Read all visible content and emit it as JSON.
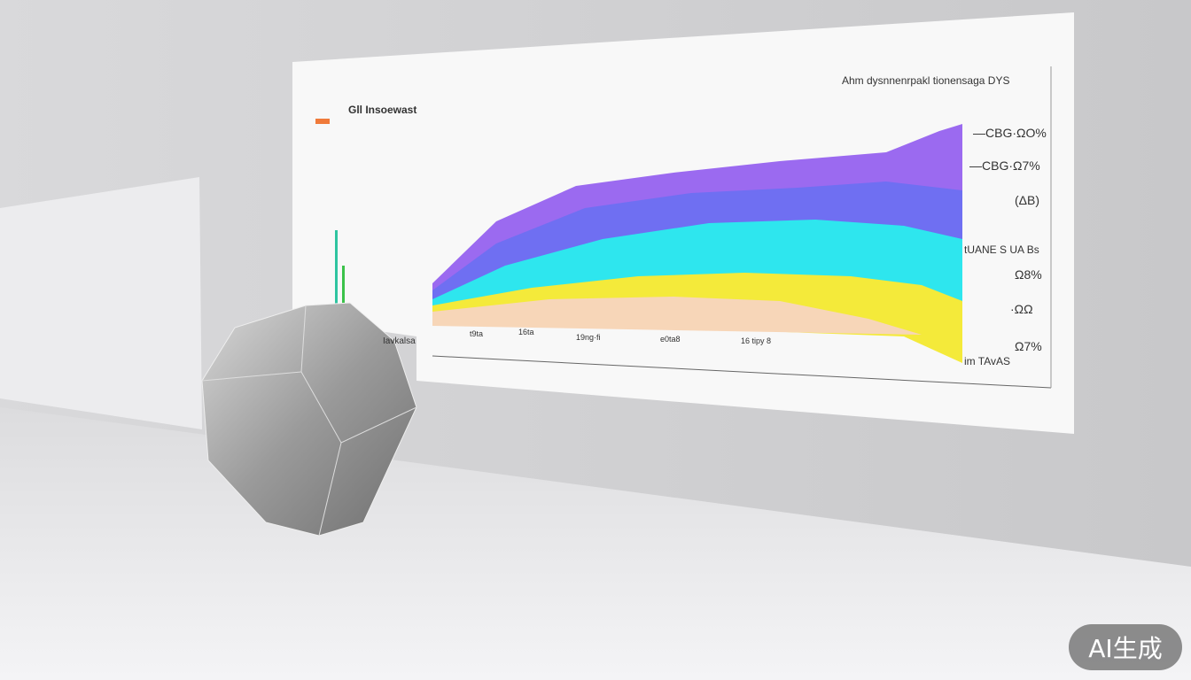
{
  "scene": {
    "description_labels": {
      "panel_title": "Ahm dysnnenrpakl tionensaga DYS",
      "top_left_heading": "Gll Insoewast",
      "right_labels": [
        "—CBG·ΩO%",
        "—CBG·Ω7%",
        "(ΔB)",
        "tUANE S UA Bs",
        "Ω8%",
        "·ΩΩ",
        "Ω7%"
      ],
      "bottom_right": "im TAvAS",
      "x_ticks": [
        "t9ta",
        "16ta",
        "19ng·fi",
        "e0ta8",
        "16 tipy 8"
      ],
      "left_label": "Iavkalsa"
    },
    "colors": {
      "purple": "#9b6af0",
      "indigo": "#6f6ff2",
      "cyan": "#2ee6ee",
      "yellow": "#f4ea3a",
      "peach": "#f7d6b8"
    }
  },
  "badge": {
    "text": "AI生成"
  }
}
